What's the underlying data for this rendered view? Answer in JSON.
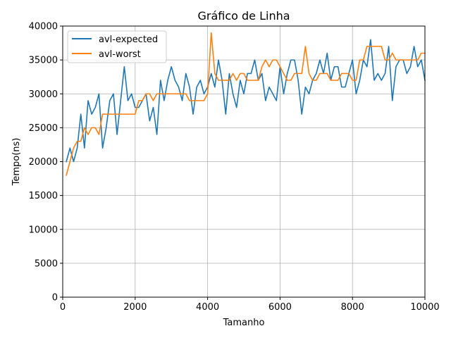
{
  "chart_data": {
    "type": "line",
    "title": "Gráfico de Linha",
    "xlabel": "Tamanho",
    "ylabel": "Tempo(ns)",
    "xlim": [
      0,
      10000
    ],
    "ylim": [
      0,
      40000
    ],
    "xticks": [
      0,
      2000,
      4000,
      6000,
      8000,
      10000
    ],
    "xtick_labels": [
      "0",
      "2000",
      "4000",
      "6000",
      "8000",
      "10000"
    ],
    "yticks": [
      0,
      5000,
      10000,
      15000,
      20000,
      25000,
      30000,
      35000,
      40000
    ],
    "ytick_labels": [
      "0",
      "5000",
      "10000",
      "15000",
      "20000",
      "25000",
      "30000",
      "35000",
      "40000"
    ],
    "grid": true,
    "legend_position": "upper-left",
    "x": [
      100,
      200,
      300,
      400,
      500,
      600,
      700,
      800,
      900,
      1000,
      1100,
      1200,
      1300,
      1400,
      1500,
      1600,
      1700,
      1800,
      1900,
      2000,
      2100,
      2200,
      2300,
      2400,
      2500,
      2600,
      2700,
      2800,
      2900,
      3000,
      3100,
      3200,
      3300,
      3400,
      3500,
      3600,
      3700,
      3800,
      3900,
      4000,
      4100,
      4200,
      4300,
      4400,
      4500,
      4600,
      4700,
      4800,
      4900,
      5000,
      5100,
      5200,
      5300,
      5400,
      5500,
      5600,
      5700,
      5800,
      5900,
      6000,
      6100,
      6200,
      6300,
      6400,
      6500,
      6600,
      6700,
      6800,
      6900,
      7000,
      7100,
      7200,
      7300,
      7400,
      7500,
      7600,
      7700,
      7800,
      7900,
      8000,
      8100,
      8200,
      8300,
      8400,
      8500,
      8600,
      8700,
      8800,
      8900,
      9000,
      9100,
      9200,
      9300,
      9400,
      9500,
      9600,
      9700,
      9800,
      9900,
      10000
    ],
    "series": [
      {
        "name": "avl-expected",
        "color": "#1f77b4",
        "values": [
          20000,
          22000,
          20000,
          22000,
          27000,
          22000,
          29000,
          27000,
          28000,
          30000,
          22000,
          25000,
          29000,
          30000,
          24000,
          29000,
          34000,
          29000,
          30000,
          28000,
          28000,
          29000,
          30000,
          26000,
          28000,
          24000,
          32000,
          29000,
          32000,
          34000,
          32000,
          31000,
          29000,
          33000,
          31000,
          27000,
          31000,
          32000,
          30000,
          31000,
          33000,
          31000,
          35000,
          32000,
          27000,
          33000,
          30000,
          28000,
          32000,
          30000,
          33000,
          33000,
          35000,
          32000,
          33000,
          29000,
          31000,
          30000,
          29000,
          34000,
          30000,
          33000,
          35000,
          35000,
          32000,
          27000,
          31000,
          30000,
          32000,
          33000,
          35000,
          33000,
          36000,
          32000,
          34000,
          34000,
          31000,
          31000,
          33000,
          35000,
          30000,
          32000,
          35000,
          34000,
          38000,
          32000,
          33000,
          32000,
          33000,
          37000,
          29000,
          34000,
          35000,
          35000,
          33000,
          34000,
          37000,
          34000,
          35000,
          32000
        ]
      },
      {
        "name": "avl-worst",
        "color": "#ff7f0e",
        "values": [
          18000,
          20000,
          22000,
          23000,
          23000,
          25000,
          24000,
          25000,
          25000,
          24000,
          27000,
          27000,
          27000,
          27000,
          27000,
          27000,
          27000,
          27000,
          27000,
          27000,
          29000,
          29000,
          30000,
          30000,
          29000,
          30000,
          30000,
          30000,
          30000,
          30000,
          30000,
          30000,
          30000,
          30000,
          29000,
          29000,
          29000,
          29000,
          29000,
          30000,
          39000,
          33000,
          32000,
          32000,
          32000,
          32000,
          33000,
          32000,
          33000,
          33000,
          32000,
          32000,
          32000,
          32000,
          34000,
          35000,
          34000,
          35000,
          35000,
          34000,
          33000,
          32000,
          32000,
          33000,
          33000,
          33000,
          37000,
          33000,
          32000,
          32000,
          33000,
          33000,
          33000,
          32000,
          32000,
          32000,
          33000,
          33000,
          33000,
          32000,
          32000,
          35000,
          35000,
          37000,
          37000,
          37000,
          37000,
          37000,
          35000,
          35000,
          36000,
          35000,
          35000,
          35000,
          35000,
          35000,
          35000,
          35000,
          36000,
          36000
        ]
      }
    ]
  }
}
